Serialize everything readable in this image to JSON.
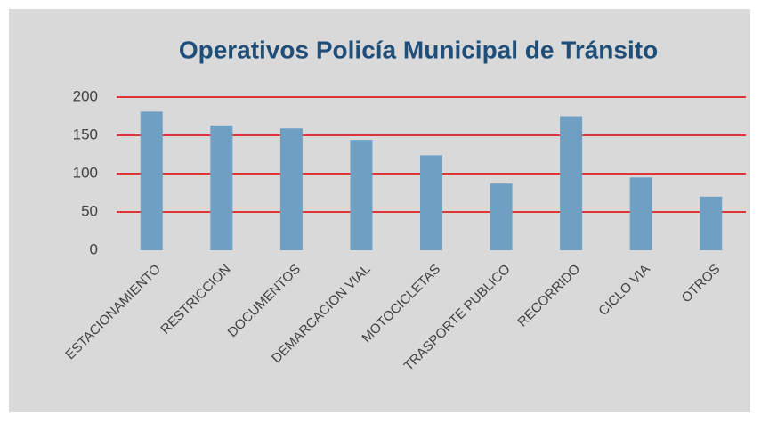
{
  "chart_data": {
    "type": "bar",
    "title": "Operativos Policía Municipal de Tránsito",
    "categories": [
      "ESTACIONAMIENTO",
      "RESTRICCION",
      "DOCUMENTOS",
      "DEMARCACION VIAL",
      "MOTOCICLETAS",
      "TRASPORTE PUBLICO",
      "RECORRIDO",
      "CICLO VIA",
      "OTROS"
    ],
    "values": [
      181,
      163,
      159,
      144,
      124,
      87,
      175,
      95,
      70
    ],
    "color": "#6fa0c4",
    "ylim": [
      0,
      200
    ],
    "yticks": [
      0,
      50,
      100,
      150,
      200
    ],
    "grid": true,
    "grid_color": "#e00000"
  }
}
